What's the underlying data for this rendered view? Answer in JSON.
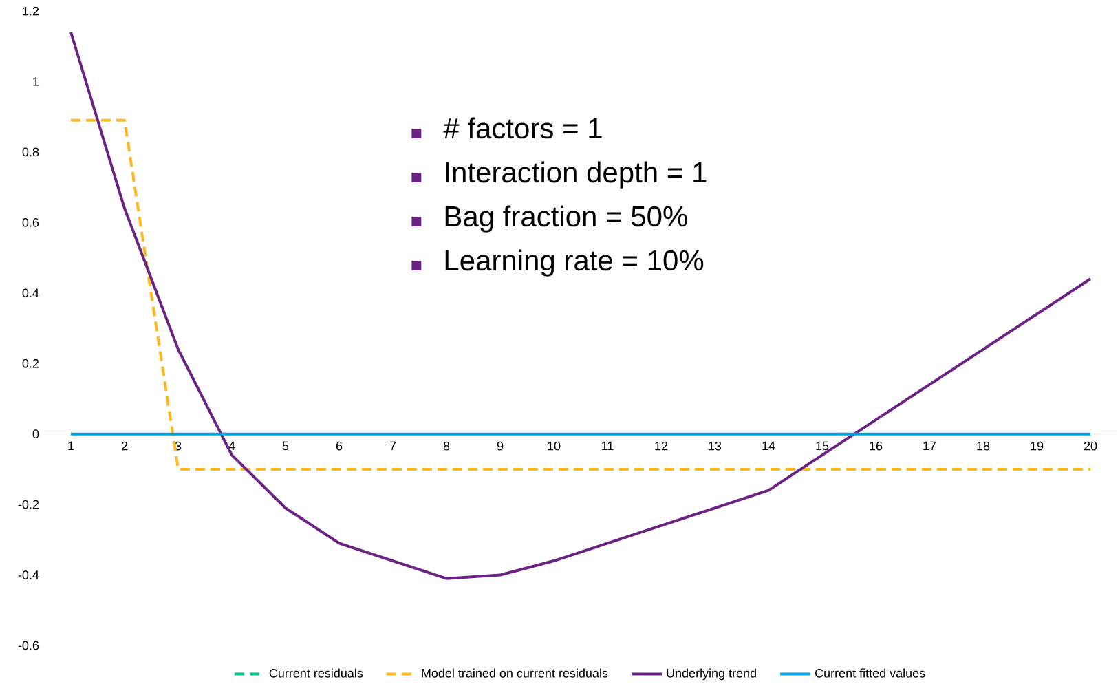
{
  "chart_data": {
    "type": "line",
    "categories": [
      "1",
      "2",
      "3",
      "4",
      "5",
      "6",
      "7",
      "8",
      "9",
      "10",
      "11",
      "12",
      "13",
      "14",
      "15",
      "16",
      "17",
      "18",
      "19",
      "20"
    ],
    "ylim": [
      -0.6,
      1.2
    ],
    "yticks": [
      -0.6,
      -0.4,
      -0.2,
      0,
      0.2,
      0.4,
      0.6,
      0.8,
      1,
      1.2
    ],
    "legend": "bottom",
    "series": [
      {
        "name": "Current residuals",
        "color": "#00bf8f",
        "line_style": "dashed",
        "values": [
          null,
          null,
          null,
          null,
          null,
          null,
          null,
          null,
          null,
          null,
          null,
          null,
          null,
          null,
          null,
          null,
          null,
          null,
          null,
          null
        ]
      },
      {
        "name": "Model trained on current residuals",
        "color": "#ffb81c",
        "line_style": "dashed",
        "values": [
          0.89,
          0.89,
          -0.1,
          -0.1,
          -0.1,
          -0.1,
          -0.1,
          -0.1,
          -0.1,
          -0.1,
          -0.1,
          -0.1,
          -0.1,
          -0.1,
          -0.1,
          -0.1,
          -0.1,
          -0.1,
          -0.1,
          -0.1
        ]
      },
      {
        "name": "Underlying trend",
        "color": "#6a2383",
        "line_style": "solid",
        "values": [
          1.14,
          0.64,
          0.24,
          -0.06,
          -0.21,
          -0.31,
          -0.36,
          -0.41,
          -0.4,
          -0.36,
          -0.31,
          -0.26,
          -0.21,
          -0.16,
          -0.06,
          0.04,
          0.14,
          0.24,
          0.34,
          0.44
        ]
      },
      {
        "name": "Current fitted values",
        "color": "#00a3e0",
        "line_style": "solid",
        "values": [
          0,
          0,
          0,
          0,
          0,
          0,
          0,
          0,
          0,
          0,
          0,
          0,
          0,
          0,
          0,
          0,
          0,
          0,
          0,
          0
        ]
      }
    ],
    "annotations": [
      "# factors = 1",
      "Interaction depth = 1",
      "Bag fraction = 50%",
      "Learning rate = 10%"
    ]
  }
}
